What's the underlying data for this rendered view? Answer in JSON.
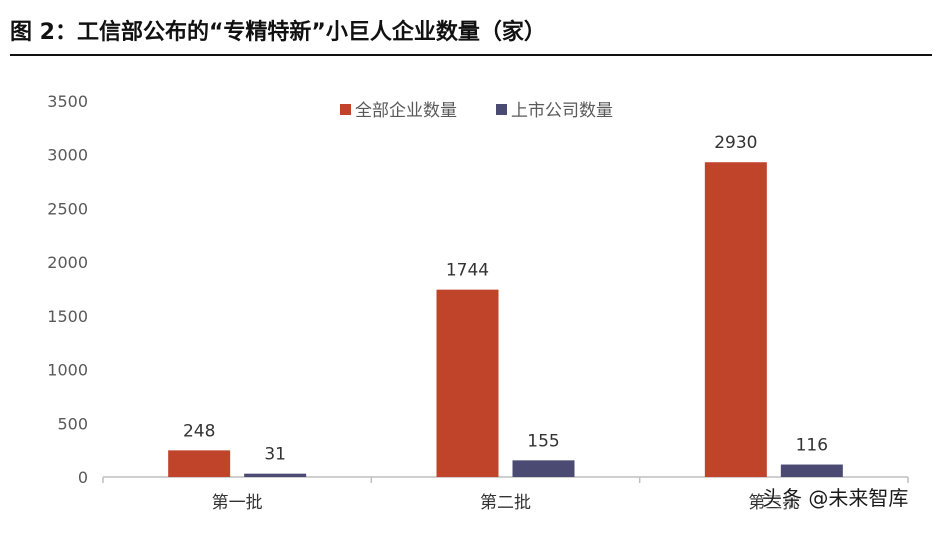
{
  "title": "图 2：工信部公布的“专精特新”小巨人企业数量（家）",
  "watermark": "头条 @未来智库",
  "chart_data": {
    "type": "bar",
    "categories": [
      "第一批",
      "第二批",
      "第三批"
    ],
    "series": [
      {
        "name": "全部企业数量",
        "values": [
          248,
          1744,
          2930
        ],
        "color": "#c0442a"
      },
      {
        "name": "上市公司数量",
        "values": [
          31,
          155,
          116
        ],
        "color": "#4b4a73"
      }
    ],
    "ylim": [
      0,
      3500
    ],
    "yticks": [
      0,
      500,
      1000,
      1500,
      2000,
      2500,
      3000,
      3500
    ],
    "grid": false,
    "legend_position": "top-center"
  }
}
